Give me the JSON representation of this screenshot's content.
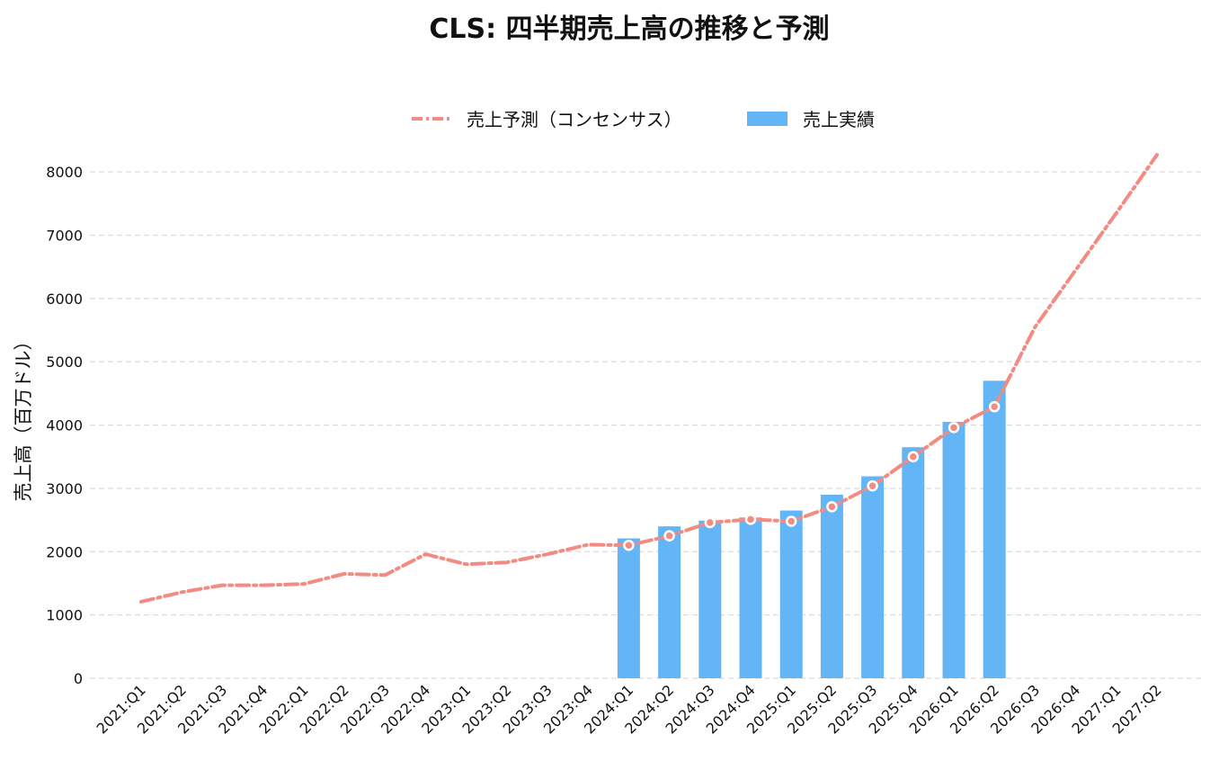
{
  "chart_data": {
    "type": "bar",
    "title": "CLS: 四半期売上高の推移と予測",
    "xlabel": "",
    "ylabel": "売上高（百万ドル）",
    "ylim": [
      0,
      8300
    ],
    "yticks": [
      0,
      1000,
      2000,
      3000,
      4000,
      5000,
      6000,
      7000,
      8000
    ],
    "grid": true,
    "legend_position": "top-center",
    "categories": [
      "2021:Q1",
      "2021:Q2",
      "2021:Q3",
      "2021:Q4",
      "2022:Q1",
      "2022:Q2",
      "2022:Q3",
      "2022:Q4",
      "2023:Q1",
      "2023:Q2",
      "2023:Q3",
      "2023:Q4",
      "2024:Q1",
      "2024:Q2",
      "2024:Q3",
      "2024:Q4",
      "2025:Q1",
      "2025:Q2",
      "2025:Q3",
      "2025:Q4",
      "2026:Q1",
      "2026:Q2",
      "2026:Q3",
      "2026:Q4",
      "2027:Q1",
      "2027:Q2"
    ],
    "series": [
      {
        "name": "売上予測（コンセンサス）",
        "type": "line",
        "style": "dash-dot",
        "color": "#F28B82",
        "values": [
          1210,
          1360,
          1470,
          1470,
          1490,
          1650,
          1630,
          1960,
          1800,
          1830,
          1960,
          2110,
          2100,
          2250,
          2460,
          2510,
          2480,
          2710,
          3040,
          3500,
          3960,
          4290,
          5550,
          6450,
          7350,
          8270
        ],
        "marked_from_index": 12,
        "marked_to_index": 21
      },
      {
        "name": "売上実績",
        "type": "bar",
        "color": "#64B5F6",
        "values": [
          null,
          null,
          null,
          null,
          null,
          null,
          null,
          null,
          null,
          null,
          null,
          null,
          2210,
          2400,
          2490,
          2540,
          2650,
          2900,
          3190,
          3650,
          4050,
          4700,
          null,
          null,
          null,
          null
        ]
      }
    ]
  }
}
